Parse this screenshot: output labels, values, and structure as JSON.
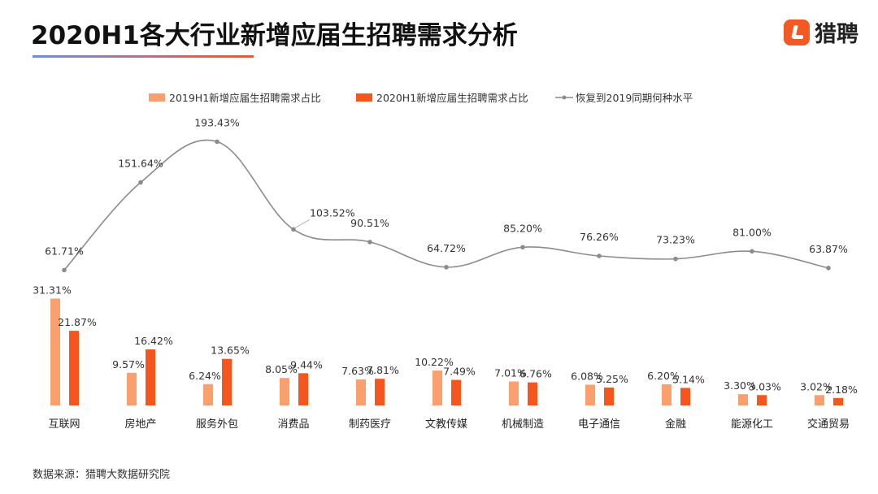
{
  "title": "2020H1各大行业新增应届生招聘需求分析",
  "logo_text": "猎聘",
  "source": "数据来源：猎聘大数据研究院",
  "colors": {
    "bar2019": "#f9a06e",
    "bar2020": "#f4561d",
    "line": "#8c8c8c",
    "logo": "#f25a23"
  },
  "chart_data": {
    "type": "bar",
    "categories": [
      "互联网",
      "房地产",
      "服务外包",
      "消费品",
      "制药医疗",
      "文教传媒",
      "机械制造",
      "电子通信",
      "金融",
      "能源化工",
      "交通贸易"
    ],
    "series": [
      {
        "name": "2019H1新增应届生招聘需求占比",
        "type": "bar",
        "values": [
          31.31,
          9.57,
          6.24,
          8.05,
          7.63,
          10.22,
          7.01,
          6.08,
          6.2,
          3.3,
          3.02
        ],
        "labels": [
          "31.31%",
          "9.57%",
          "6.24%",
          "8.05%",
          "7.63%",
          "10.22%",
          "7.01%",
          "6.08%",
          "6.20%",
          "3.30%",
          "3.02%"
        ]
      },
      {
        "name": "2020H1新增应届生招聘需求占比",
        "type": "bar",
        "values": [
          21.87,
          16.42,
          13.65,
          9.44,
          7.81,
          7.49,
          6.76,
          5.25,
          5.14,
          3.03,
          2.18
        ],
        "labels": [
          "21.87%",
          "16.42%",
          "13.65%",
          "9.44%",
          "7.81%",
          "7.49%",
          "6.76%",
          "5.25%",
          "5.14%",
          "3.03%",
          "2.18%"
        ]
      },
      {
        "name": "恢复到2019同期何种水平",
        "type": "line",
        "values": [
          61.71,
          151.64,
          193.43,
          103.52,
          90.51,
          64.72,
          85.2,
          76.26,
          73.23,
          81.0,
          63.87
        ],
        "labels": [
          "61.71%",
          "151.64%",
          "193.43%",
          "103.52%",
          "90.51%",
          "64.72%",
          "85.20%",
          "76.26%",
          "73.23%",
          "81.00%",
          "63.87%"
        ]
      }
    ],
    "legend": "top",
    "grid": false
  }
}
